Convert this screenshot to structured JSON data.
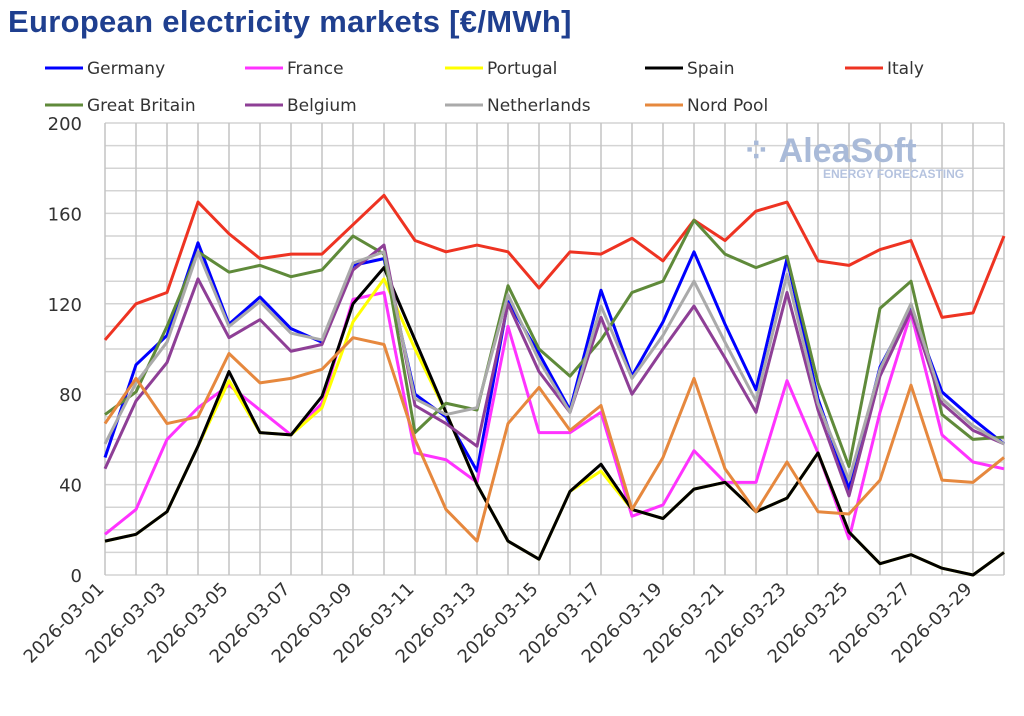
{
  "chart_data": {
    "type": "line",
    "title": "European electricity markets [€/MWh]",
    "xlabel": "",
    "ylabel": "",
    "ylim": [
      0,
      200
    ],
    "yticks": [
      0,
      40,
      80,
      120,
      160,
      200
    ],
    "grid": true,
    "legend_placement": "top",
    "watermark": "AleaSoft ENERGY FORECASTING",
    "x": [
      "2026-03-01",
      "2026-03-02",
      "2026-03-03",
      "2026-03-04",
      "2026-03-05",
      "2026-03-06",
      "2026-03-07",
      "2026-03-08",
      "2026-03-09",
      "2026-03-10",
      "2026-03-11",
      "2026-03-12",
      "2026-03-13",
      "2026-03-14",
      "2026-03-15",
      "2026-03-16",
      "2026-03-17",
      "2026-03-18",
      "2026-03-19",
      "2026-03-20",
      "2026-03-21",
      "2026-03-22",
      "2026-03-23",
      "2026-03-24",
      "2026-03-25",
      "2026-03-26",
      "2026-03-27",
      "2026-03-28",
      "2026-03-29",
      "2026-03-30"
    ],
    "series": [
      {
        "name": "Germany",
        "color": "#0000ff",
        "values": [
          52,
          93,
          106,
          147,
          111,
          123,
          109,
          103,
          137,
          140,
          80,
          70,
          46,
          121,
          98,
          73,
          126,
          88,
          112,
          143,
          111,
          82,
          140,
          78,
          38,
          92,
          118,
          81,
          69,
          58
        ]
      },
      {
        "name": "France",
        "color": "#ff33ff",
        "values": [
          18,
          29,
          60,
          74,
          84,
          73,
          62,
          76,
          122,
          125,
          54,
          51,
          41,
          110,
          63,
          63,
          72,
          26,
          31,
          55,
          41,
          41,
          86,
          54,
          16,
          72,
          116,
          62,
          50,
          47
        ]
      },
      {
        "name": "Portugal",
        "color": "#ffff00",
        "values": [
          15,
          18,
          28,
          57,
          86,
          63,
          62,
          74,
          112,
          131,
          100,
          72,
          40,
          15,
          7,
          37,
          46,
          29,
          25,
          38,
          41,
          28,
          34,
          54,
          19,
          5,
          9,
          3,
          0,
          10
        ]
      },
      {
        "name": "Spain",
        "color": "#000000",
        "values": [
          15,
          18,
          28,
          57,
          90,
          63,
          62,
          79,
          120,
          136,
          104,
          72,
          40,
          15,
          7,
          37,
          49,
          29,
          25,
          38,
          41,
          28,
          34,
          54,
          19,
          5,
          9,
          3,
          0,
          10
        ]
      },
      {
        "name": "Italy",
        "color": "#ee3322",
        "values": [
          104,
          120,
          125,
          165,
          151,
          140,
          142,
          142,
          155,
          168,
          148,
          143,
          146,
          143,
          127,
          143,
          142,
          149,
          139,
          157,
          148,
          161,
          165,
          139,
          137,
          144,
          148,
          114,
          116,
          150
        ]
      },
      {
        "name": "Great Britain",
        "color": "#5f8a3a",
        "values": [
          71,
          81,
          110,
          143,
          134,
          137,
          132,
          135,
          150,
          142,
          63,
          76,
          73,
          128,
          100,
          88,
          104,
          125,
          130,
          157,
          142,
          136,
          141,
          85,
          48,
          118,
          130,
          71,
          60,
          61
        ]
      },
      {
        "name": "Belgium",
        "color": "#8e3f96",
        "values": [
          47,
          77,
          94,
          131,
          105,
          113,
          99,
          102,
          135,
          146,
          75,
          67,
          57,
          120,
          90,
          72,
          114,
          80,
          100,
          119,
          96,
          72,
          125,
          73,
          35,
          88,
          117,
          76,
          64,
          58
        ]
      },
      {
        "name": "Netherlands",
        "color": "#aaaaaa",
        "values": [
          58,
          85,
          103,
          143,
          110,
          121,
          107,
          104,
          138,
          143,
          78,
          71,
          74,
          124,
          95,
          72,
          119,
          87,
          106,
          130,
          103,
          77,
          133,
          76,
          42,
          91,
          120,
          78,
          66,
          58
        ]
      },
      {
        "name": "Nord Pool",
        "color": "#e6883e",
        "values": [
          67,
          87,
          67,
          70,
          98,
          85,
          87,
          91,
          105,
          102,
          60,
          29,
          15,
          67,
          83,
          64,
          75,
          29,
          52,
          87,
          47,
          28,
          50,
          28,
          27,
          42,
          84,
          42,
          41,
          52
        ]
      }
    ]
  }
}
